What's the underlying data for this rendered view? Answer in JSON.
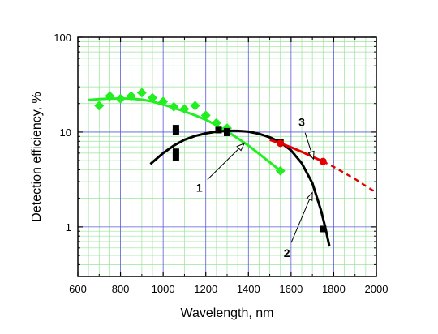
{
  "chart_data": {
    "type": "scatter",
    "title": "",
    "xlabel": "Wavelength, nm",
    "ylabel": "Detection efficiency, %",
    "xlim": [
      600,
      2000
    ],
    "ylim": [
      0.3,
      100
    ],
    "yscale": "log",
    "grid": true,
    "legend": "none",
    "colors": {
      "grid_major": "#5a5ad8",
      "grid_minor": "#9be39b",
      "series_1": "#22ee22",
      "series_2": "#000000",
      "series_3": "#e40000"
    },
    "x_ticks": [
      "600",
      "800",
      "1000",
      "1200",
      "1400",
      "1600",
      "1800",
      "2000"
    ],
    "y_ticks": [
      {
        "value": 1,
        "label": "1"
      },
      {
        "value": 10,
        "label": "10"
      },
      {
        "value": 100,
        "label": "100"
      }
    ],
    "series": [
      {
        "label": "1",
        "color": "#22ee22",
        "marker": "diamond",
        "points": [
          [
            700,
            19
          ],
          [
            750,
            24
          ],
          [
            800,
            22.5
          ],
          [
            850,
            24
          ],
          [
            900,
            26
          ],
          [
            950,
            23
          ],
          [
            1000,
            21
          ],
          [
            1050,
            18.5
          ],
          [
            1100,
            17.5
          ],
          [
            1150,
            19
          ],
          [
            1200,
            15
          ],
          [
            1250,
            12.5
          ],
          [
            1300,
            11
          ],
          [
            1550,
            3.9
          ]
        ],
        "curve": [
          [
            650,
            21.8
          ],
          [
            700,
            22.3
          ],
          [
            750,
            22.5
          ],
          [
            800,
            22.6
          ],
          [
            850,
            22.5
          ],
          [
            900,
            22
          ],
          [
            950,
            21
          ],
          [
            1000,
            19.5
          ],
          [
            1050,
            18
          ],
          [
            1100,
            16.5
          ],
          [
            1150,
            15
          ],
          [
            1200,
            13.5
          ],
          [
            1250,
            11.8
          ],
          [
            1300,
            10.2
          ],
          [
            1350,
            8.6
          ],
          [
            1400,
            7.2
          ],
          [
            1450,
            5.9
          ],
          [
            1500,
            4.8
          ],
          [
            1550,
            3.9
          ]
        ]
      },
      {
        "label": "2",
        "color": "#000000",
        "marker": "square",
        "points": [
          [
            1060,
            11
          ],
          [
            1060,
            10
          ],
          [
            1060,
            6.2
          ],
          [
            1060,
            5.4
          ],
          [
            1260,
            10.5
          ],
          [
            1300,
            10.2
          ],
          [
            1300,
            9.8
          ],
          [
            1550,
            7.8
          ],
          [
            1750,
            0.95
          ]
        ],
        "curve": [
          [
            940,
            4.6
          ],
          [
            1000,
            6
          ],
          [
            1050,
            7.2
          ],
          [
            1100,
            8.3
          ],
          [
            1150,
            9.1
          ],
          [
            1200,
            9.7
          ],
          [
            1250,
            10.1
          ],
          [
            1300,
            10.3
          ],
          [
            1350,
            10.3
          ],
          [
            1400,
            10.1
          ],
          [
            1450,
            9.6
          ],
          [
            1500,
            8.8
          ],
          [
            1550,
            7.8
          ],
          [
            1600,
            6.4
          ],
          [
            1650,
            4.7
          ],
          [
            1700,
            2.9
          ],
          [
            1740,
            1.5
          ],
          [
            1760,
            1.0
          ],
          [
            1780,
            0.62
          ]
        ]
      },
      {
        "label": "3",
        "color": "#e40000",
        "marker": "circle",
        "points": [
          [
            1550,
            7.6
          ],
          [
            1750,
            4.9
          ]
        ],
        "curve": [
          [
            1500,
            8.3
          ],
          [
            1550,
            7.6
          ],
          [
            1600,
            6.9
          ],
          [
            1650,
            6.2
          ],
          [
            1700,
            5.5
          ],
          [
            1750,
            4.9
          ]
        ],
        "extrapolation": [
          [
            1750,
            4.9
          ],
          [
            1800,
            4.3
          ],
          [
            1850,
            3.7
          ],
          [
            1900,
            3.2
          ],
          [
            1950,
            2.7
          ],
          [
            2000,
            2.3
          ]
        ]
      }
    ],
    "annotations": [
      {
        "text": "1",
        "series": "1",
        "arrow_to": [
          1380,
          7.6
        ],
        "label_at": [
          1170,
          2.6
        ]
      },
      {
        "text": "2",
        "series": "2",
        "arrow_to": [
          1700,
          2.3
        ],
        "label_at": [
          1580,
          0.53
        ]
      },
      {
        "text": "3",
        "series": "3",
        "arrow_to": [
          1705,
          5.2
        ],
        "label_at": [
          1650,
          12.8
        ]
      }
    ]
  }
}
